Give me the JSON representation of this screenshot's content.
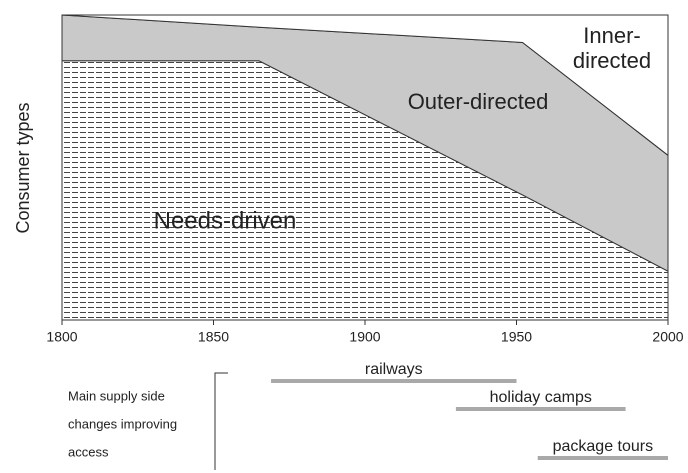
{
  "chart_data": {
    "type": "stacked_area",
    "y_label": "Consumer types",
    "x": [
      1800,
      1865,
      1952,
      2000
    ],
    "xlim": [
      1800,
      2000
    ],
    "xticks": [
      1800,
      1850,
      1900,
      1950,
      2000
    ],
    "ylim": [
      0,
      100
    ],
    "series": [
      {
        "name": "Needs-driven",
        "color": "#444444",
        "hatch": true,
        "values": [
          85,
          85,
          41,
          16
        ]
      },
      {
        "name": "Outer-directed",
        "color": "#c9c9c9",
        "hatch": false,
        "values": [
          15,
          11,
          50,
          38
        ]
      },
      {
        "name": "Inner-directed",
        "color": "#ffffff",
        "hatch": false,
        "values": [
          0,
          4,
          9,
          46
        ]
      }
    ],
    "supply_changes": {
      "label": [
        "Main supply side",
        "changes improving",
        "access"
      ],
      "color": "#a9a9a9",
      "items": [
        {
          "name": "railways",
          "start": 1869,
          "end": 1950
        },
        {
          "name": "holiday camps",
          "start": 1930,
          "end": 1986
        },
        {
          "name": "package tours",
          "start": 1957,
          "end": 2000
        }
      ]
    }
  }
}
